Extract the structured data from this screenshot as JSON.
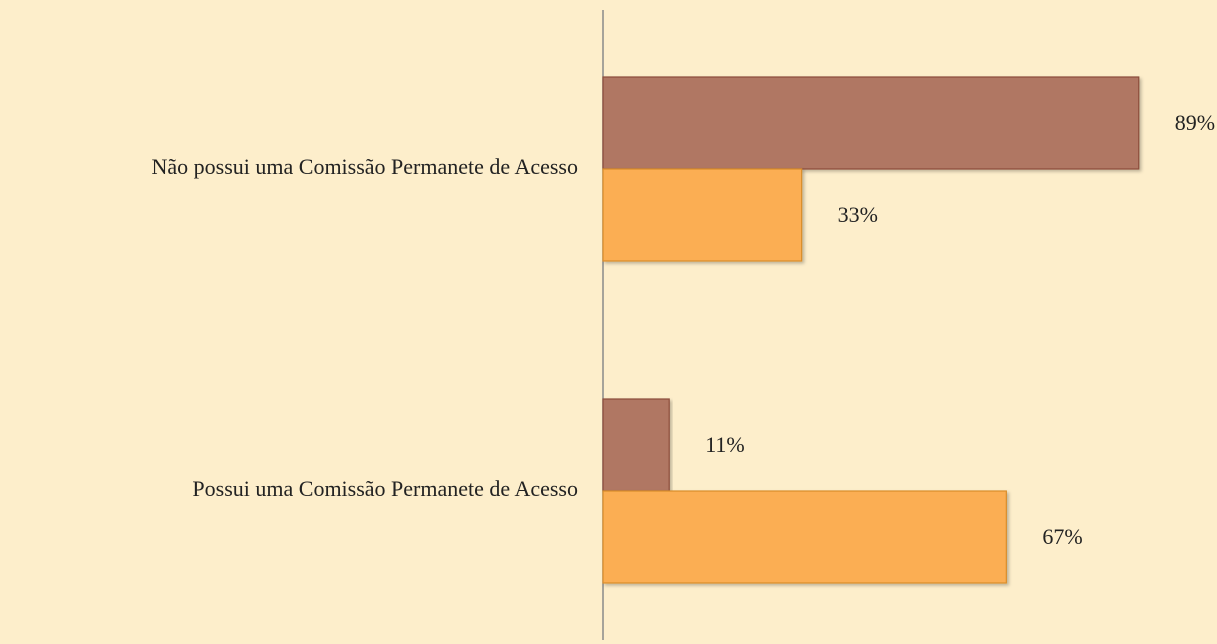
{
  "chart_data": {
    "type": "barh",
    "categories": [
      "Não possui uma Comissão Permanete de Acesso",
      "Possui uma Comissão Permanete de Acesso"
    ],
    "series": [
      {
        "color": "#b07763",
        "values": [
          89,
          11
        ],
        "value_labels": [
          "89%",
          "11%"
        ]
      },
      {
        "color": "#fbae52",
        "values": [
          33,
          67
        ],
        "value_labels": [
          "33%",
          "67%"
        ]
      }
    ],
    "xlim": [
      0,
      100
    ]
  }
}
